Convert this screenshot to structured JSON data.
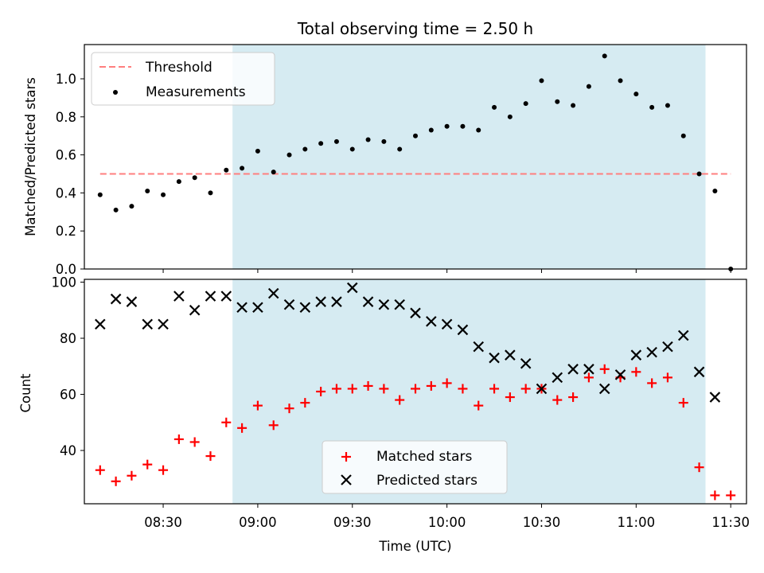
{
  "chart_data": [
    {
      "type": "scatter",
      "title": "Total observing time = 2.50 h",
      "xlabel": "",
      "ylabel": "Matched/Predicted stars",
      "xlim": [
        "08:05",
        "11:35"
      ],
      "ylim": [
        0,
        1.18
      ],
      "yticks": [
        "0.0",
        "0.2",
        "0.4",
        "0.6",
        "0.8",
        "1.0"
      ],
      "grid": false,
      "legend_position": "upper-left",
      "shaded_interval": {
        "start": "08:52",
        "end": "11:22",
        "color": "#add8e6"
      },
      "threshold": {
        "name": "Threshold",
        "value": 0.5,
        "x_start": "08:10",
        "x_end": "11:30",
        "color": "#ff7f7f"
      },
      "series": [
        {
          "name": "Measurements",
          "color": "#000000",
          "x": [
            "08:10",
            "08:15",
            "08:20",
            "08:25",
            "08:30",
            "08:35",
            "08:40",
            "08:45",
            "08:50",
            "08:55",
            "09:00",
            "09:05",
            "09:10",
            "09:15",
            "09:20",
            "09:25",
            "09:30",
            "09:35",
            "09:40",
            "09:45",
            "09:50",
            "09:55",
            "10:00",
            "10:05",
            "10:10",
            "10:15",
            "10:20",
            "10:25",
            "10:30",
            "10:35",
            "10:40",
            "10:45",
            "10:50",
            "10:55",
            "11:00",
            "11:05",
            "11:10",
            "11:15",
            "11:20",
            "11:25",
            "11:30"
          ],
          "y": [
            0.39,
            0.31,
            0.33,
            0.41,
            0.39,
            0.46,
            0.48,
            0.4,
            0.52,
            0.53,
            0.62,
            0.51,
            0.6,
            0.63,
            0.66,
            0.67,
            0.63,
            0.68,
            0.67,
            0.63,
            0.7,
            0.73,
            0.75,
            0.75,
            0.73,
            0.85,
            0.8,
            0.87,
            0.99,
            0.88,
            0.86,
            0.96,
            1.12,
            0.99,
            0.92,
            0.85,
            0.86,
            0.7,
            0.5,
            0.41,
            0.0
          ]
        }
      ]
    },
    {
      "type": "scatter",
      "title": "",
      "xlabel": "Time (UTC)",
      "ylabel": "Count",
      "xlim": [
        "08:05",
        "11:35"
      ],
      "ylim": [
        21,
        101
      ],
      "xticks": [
        "08:30",
        "09:00",
        "09:30",
        "10:00",
        "10:30",
        "11:00",
        "11:30"
      ],
      "yticks": [
        "40",
        "60",
        "80",
        "100"
      ],
      "grid": false,
      "legend_position": "lower-center",
      "shaded_interval": {
        "start": "08:52",
        "end": "11:22",
        "color": "#add8e6"
      },
      "series": [
        {
          "name": "Matched stars",
          "marker": "+",
          "color": "#ff0000",
          "x": [
            "08:10",
            "08:15",
            "08:20",
            "08:25",
            "08:30",
            "08:35",
            "08:40",
            "08:45",
            "08:50",
            "08:55",
            "09:00",
            "09:05",
            "09:10",
            "09:15",
            "09:20",
            "09:25",
            "09:30",
            "09:35",
            "09:40",
            "09:45",
            "09:50",
            "09:55",
            "10:00",
            "10:05",
            "10:10",
            "10:15",
            "10:20",
            "10:25",
            "10:30",
            "10:35",
            "10:40",
            "10:45",
            "10:50",
            "10:55",
            "11:00",
            "11:05",
            "11:10",
            "11:15",
            "11:20",
            "11:25",
            "11:30"
          ],
          "y": [
            33,
            29,
            31,
            35,
            33,
            44,
            43,
            38,
            50,
            48,
            56,
            49,
            55,
            57,
            61,
            62,
            62,
            63,
            62,
            58,
            62,
            63,
            64,
            62,
            56,
            62,
            59,
            62,
            62,
            58,
            59,
            66,
            69,
            66,
            68,
            64,
            66,
            57,
            34,
            24,
            24
          ]
        },
        {
          "name": "Predicted stars",
          "marker": "x",
          "color": "#000000",
          "x": [
            "08:10",
            "08:15",
            "08:20",
            "08:25",
            "08:30",
            "08:35",
            "08:40",
            "08:45",
            "08:50",
            "08:55",
            "09:00",
            "09:05",
            "09:10",
            "09:15",
            "09:20",
            "09:25",
            "09:30",
            "09:35",
            "09:40",
            "09:45",
            "09:50",
            "09:55",
            "10:00",
            "10:05",
            "10:10",
            "10:15",
            "10:20",
            "10:25",
            "10:30",
            "10:35",
            "10:40",
            "10:45",
            "10:50",
            "10:55",
            "11:00",
            "11:05",
            "11:10",
            "11:15",
            "11:20",
            "11:25"
          ],
          "y": [
            85,
            94,
            93,
            85,
            85,
            95,
            90,
            95,
            95,
            91,
            91,
            96,
            92,
            91,
            93,
            93,
            98,
            93,
            92,
            92,
            89,
            86,
            85,
            83,
            77,
            73,
            74,
            71,
            62,
            66,
            69,
            69,
            62,
            67,
            74,
            75,
            77,
            81,
            68,
            59
          ]
        }
      ]
    }
  ]
}
